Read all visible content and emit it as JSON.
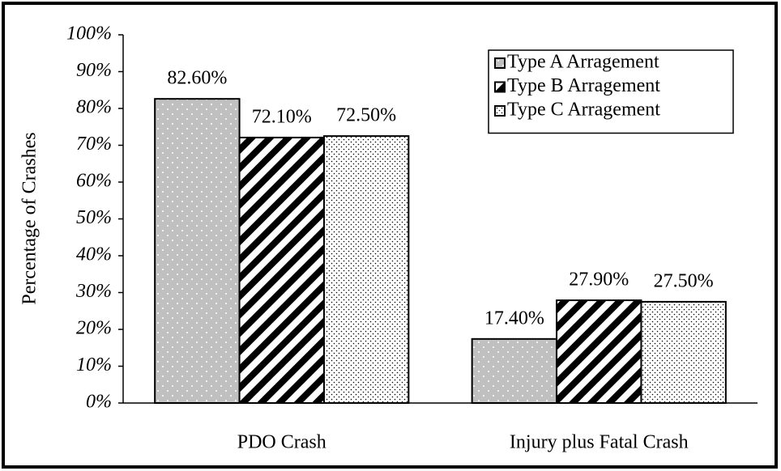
{
  "chart_data": {
    "type": "bar",
    "y_label": "Percentage of Crashes",
    "categories": [
      "PDO Crash",
      "Injury plus Fatal Crash"
    ],
    "series": [
      {
        "name": "Type A Arragement",
        "color": "#c0c0c0",
        "values": [
          82.6,
          17.4
        ],
        "value_labels": [
          "82.60%",
          "17.40%"
        ]
      },
      {
        "name": "Type B Arragement",
        "color": "#000000",
        "values": [
          72.1,
          27.9
        ],
        "value_labels": [
          "72.10%",
          "27.90%"
        ]
      },
      {
        "name": "Type C Arragement",
        "color": "#ffffff",
        "values": [
          72.5,
          27.5
        ],
        "value_labels": [
          "72.50%",
          "27.50%"
        ]
      }
    ],
    "ylim": [
      0,
      100
    ],
    "yticks": [
      {
        "value": 0,
        "label": "0%"
      },
      {
        "value": 10,
        "label": "10%"
      },
      {
        "value": 20,
        "label": "20%"
      },
      {
        "value": 30,
        "label": "30%"
      },
      {
        "value": 40,
        "label": "40%"
      },
      {
        "value": 50,
        "label": "50%"
      },
      {
        "value": 60,
        "label": "60%"
      },
      {
        "value": 70,
        "label": "70%"
      },
      {
        "value": 80,
        "label": "80%"
      },
      {
        "value": 90,
        "label": "90%"
      },
      {
        "value": 100,
        "label": "100%"
      }
    ],
    "grid": false,
    "legend": "upper right"
  }
}
